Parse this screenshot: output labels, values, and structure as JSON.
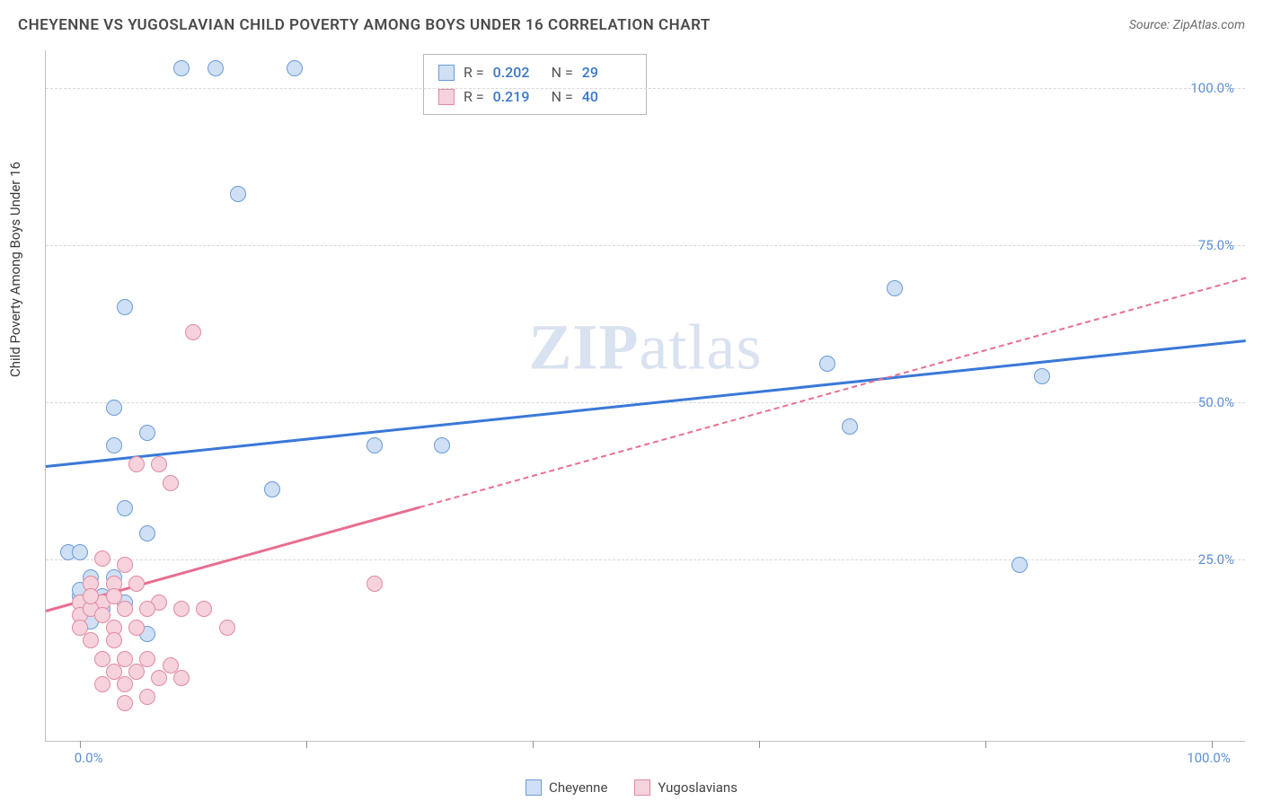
{
  "title": "CHEYENNE VS YUGOSLAVIAN CHILD POVERTY AMONG BOYS UNDER 16 CORRELATION CHART",
  "source": "Source: ZipAtlas.com",
  "y_axis_label": "Child Poverty Among Boys Under 16",
  "watermark": "ZIPatlas",
  "chart": {
    "type": "scatter",
    "xlim": [
      -3,
      103
    ],
    "ylim": [
      -4,
      106
    ],
    "xtick_positions": [
      0,
      20,
      40,
      60,
      80,
      100
    ],
    "ytick_positions": [
      25,
      50,
      75,
      100
    ],
    "xtick_labels": {
      "0": "0.0%",
      "100": "100.0%"
    },
    "ytick_labels": {
      "25": "25.0%",
      "50": "50.0%",
      "75": "75.0%",
      "100": "100.0%"
    },
    "grid_color": "#d8d8d8",
    "background_color": "#ffffff",
    "axis_color": "#c0c0c0",
    "accent_text_color": "#5b8fd6"
  },
  "series": [
    {
      "name": "Cheyenne",
      "color_fill": "#cfe0f4",
      "color_stroke": "#6a9bd8",
      "marker_radius": 9,
      "trend": {
        "x1": -3,
        "y1": 40,
        "x2": 103,
        "y2": 60,
        "solid_until_x": 103,
        "color": "#3a78d8"
      },
      "R": "0.202",
      "N": "29",
      "points": [
        [
          9,
          103
        ],
        [
          12,
          103
        ],
        [
          19,
          103
        ],
        [
          14,
          83
        ],
        [
          4,
          65
        ],
        [
          3,
          49
        ],
        [
          6,
          45
        ],
        [
          72,
          68
        ],
        [
          3,
          43
        ],
        [
          66,
          56
        ],
        [
          85,
          54
        ],
        [
          68,
          46
        ],
        [
          26,
          43
        ],
        [
          32,
          43
        ],
        [
          17,
          36
        ],
        [
          4,
          33
        ],
        [
          6,
          29
        ],
        [
          -1,
          26
        ],
        [
          0,
          26
        ],
        [
          83,
          24
        ],
        [
          1,
          22
        ],
        [
          3,
          22
        ],
        [
          2,
          19
        ],
        [
          0,
          19
        ],
        [
          4,
          18
        ],
        [
          1,
          15
        ],
        [
          6,
          13
        ],
        [
          0,
          20
        ],
        [
          2,
          17
        ]
      ]
    },
    {
      "name": "Yugoslavians",
      "color_fill": "#f6d2dc",
      "color_stroke": "#e08aa2",
      "marker_radius": 9,
      "trend": {
        "x1": -3,
        "y1": 17,
        "x2": 103,
        "y2": 70,
        "solid_until_x": 30,
        "color": "#e76f8f"
      },
      "R": "0.219",
      "N": "40",
      "points": [
        [
          10,
          61
        ],
        [
          5,
          40
        ],
        [
          7,
          40
        ],
        [
          8,
          37
        ],
        [
          26,
          21
        ],
        [
          2,
          25
        ],
        [
          4,
          24
        ],
        [
          1,
          21
        ],
        [
          3,
          21
        ],
        [
          5,
          21
        ],
        [
          7,
          18
        ],
        [
          9,
          17
        ],
        [
          11,
          17
        ],
        [
          0,
          18
        ],
        [
          2,
          18
        ],
        [
          4,
          17
        ],
        [
          6,
          17
        ],
        [
          13,
          14
        ],
        [
          3,
          14
        ],
        [
          5,
          14
        ],
        [
          1,
          12
        ],
        [
          3,
          12
        ],
        [
          2,
          9
        ],
        [
          4,
          9
        ],
        [
          6,
          9
        ],
        [
          8,
          8
        ],
        [
          3,
          7
        ],
        [
          5,
          7
        ],
        [
          7,
          6
        ],
        [
          9,
          6
        ],
        [
          2,
          5
        ],
        [
          4,
          5
        ],
        [
          6,
          3
        ],
        [
          4,
          2
        ],
        [
          0,
          16
        ],
        [
          1,
          17
        ],
        [
          2,
          16
        ],
        [
          0,
          14
        ],
        [
          1,
          19
        ],
        [
          3,
          19
        ]
      ]
    }
  ],
  "legend": {
    "items": [
      {
        "label": "Cheyenne",
        "fill": "#cfe0f4",
        "stroke": "#6a9bd8"
      },
      {
        "label": "Yugoslavians",
        "fill": "#f6d2dc",
        "stroke": "#e08aa2"
      }
    ]
  },
  "stats_box": {
    "R_label": "R =",
    "N_label": "N ="
  }
}
